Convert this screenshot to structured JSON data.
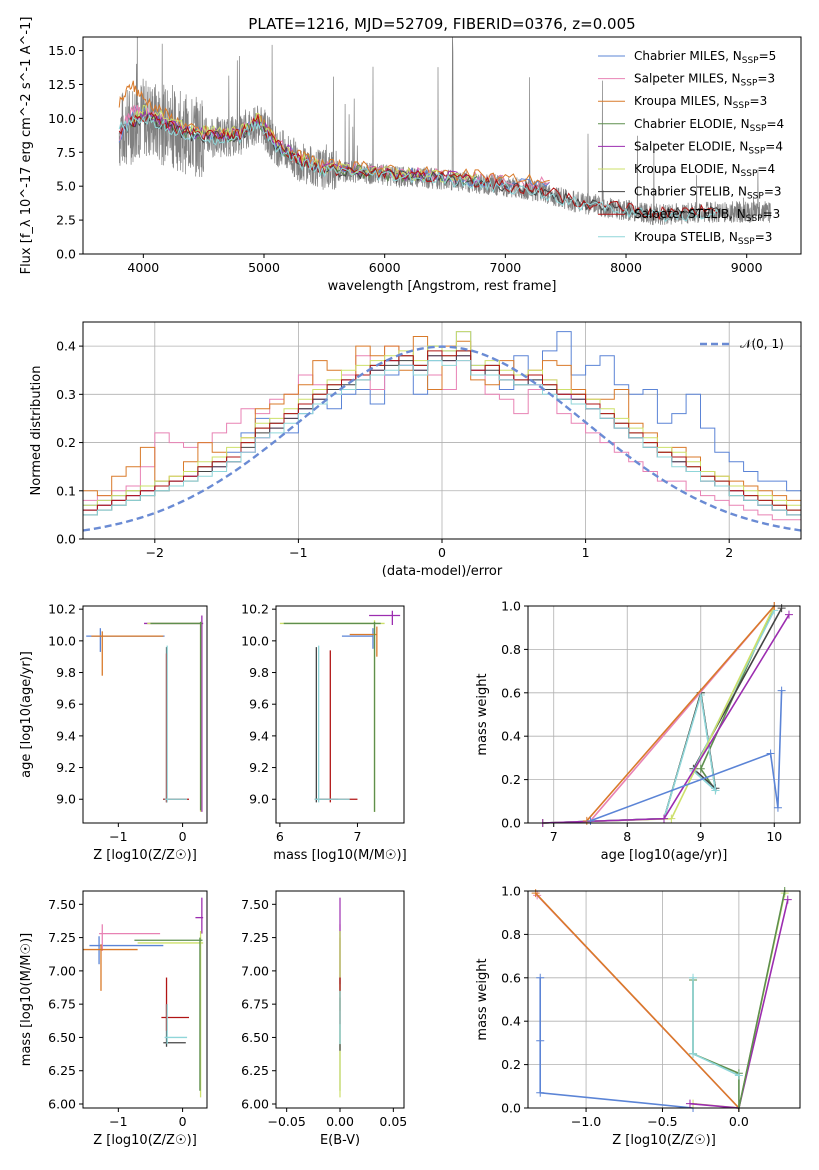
{
  "figure_title": "PLATE=1216, MJD=52709, FIBERID=0376, z=0.005",
  "colors": {
    "chabrier_miles": "#5b84d6",
    "salpeter_miles": "#e882b4",
    "kroupa_miles": "#d97a2a",
    "chabrier_elodie": "#5e8f4e",
    "salpeter_elodie": "#9c2db0",
    "kroupa_elodie": "#cde06a",
    "chabrier_stelib": "#444444",
    "salpeter_stelib": "#b11414",
    "kroupa_stelib": "#8fd6d9",
    "data": "#808080",
    "normal": "#6a8bd4"
  },
  "chart_data": [
    {
      "id": "spectrum",
      "type": "line",
      "title": "PLATE=1216, MJD=52709, FIBERID=0376, z=0.005",
      "xlabel": "wavelength [Angstrom, rest frame]",
      "ylabel": "Flux [f_λ 10^-17 erg cm^-2 s^-1 A^-1]",
      "xlim": [
        3500,
        9450
      ],
      "ylim": [
        0,
        16
      ],
      "xticks": [
        "4000",
        "5000",
        "6000",
        "7000",
        "8000",
        "9000"
      ],
      "yticks": [
        "0.0",
        "2.5",
        "5.0",
        "7.5",
        "10.0",
        "12.5",
        "15.0"
      ],
      "legend_position": "top-right",
      "series": [
        {
          "name": "Chabrier MILES, N_SSP=5",
          "x": [
            3800,
            3900,
            4000,
            4200,
            4400,
            4600,
            4800,
            4950,
            5100,
            5300,
            5500,
            5800,
            6100,
            6400,
            6700,
            7000,
            7400
          ],
          "y": [
            8.5,
            10.5,
            10.4,
            9.6,
            8.9,
            8.8,
            8.9,
            9.9,
            8.2,
            7.0,
            6.4,
            6.2,
            5.9,
            5.8,
            5.5,
            5.3,
            5.1
          ]
        },
        {
          "name": "Salpeter MILES, N_SSP=3",
          "x": [
            3800,
            3900,
            4000,
            4200,
            4400,
            4600,
            4800,
            4950,
            5100,
            5300,
            5500,
            5800,
            6100,
            6400,
            6700,
            7000,
            7400
          ],
          "y": [
            8.6,
            10.7,
            10.5,
            9.7,
            9.0,
            8.9,
            9.0,
            10.0,
            8.3,
            7.1,
            6.5,
            6.3,
            6.0,
            5.9,
            5.6,
            5.4,
            5.2
          ]
        },
        {
          "name": "Kroupa MILES, N_SSP=3",
          "x": [
            3800,
            3900,
            4000,
            4200,
            4400,
            4600,
            4800,
            4950,
            5100,
            5300,
            5500,
            5800,
            6100,
            6400,
            6700,
            7000,
            7400
          ],
          "y": [
            11.0,
            12.5,
            11.5,
            10.2,
            9.2,
            8.9,
            9.0,
            10.0,
            8.4,
            7.2,
            6.6,
            6.4,
            6.1,
            6.0,
            5.8,
            5.6,
            5.4
          ]
        },
        {
          "name": "Chabrier ELODIE, N_SSP=4",
          "x": [
            3900,
            4000,
            4200,
            4400,
            4600,
            4800,
            4950,
            5100,
            5300,
            5500,
            5800,
            6100,
            6400,
            6800
          ],
          "y": [
            9.5,
            10.2,
            9.5,
            8.8,
            8.7,
            8.8,
            9.8,
            8.1,
            6.9,
            6.3,
            6.1,
            5.8,
            5.7,
            5.4
          ]
        },
        {
          "name": "Salpeter ELODIE, N_SSP=4",
          "x": [
            3900,
            4000,
            4200,
            4400,
            4600,
            4800,
            4950,
            5100,
            5300,
            5500,
            5800,
            6100,
            6400,
            6800
          ],
          "y": [
            9.6,
            10.3,
            9.6,
            8.9,
            8.8,
            8.9,
            9.9,
            8.2,
            7.0,
            6.4,
            6.2,
            5.9,
            5.8,
            5.5
          ]
        },
        {
          "name": "Kroupa ELODIE, N_SSP=4",
          "x": [
            3900,
            4000,
            4200,
            4400,
            4600,
            4800,
            4950,
            5100,
            5300,
            5500,
            5800,
            6100,
            6400,
            6800
          ],
          "y": [
            9.8,
            10.6,
            10.0,
            9.2,
            9.0,
            9.0,
            10.1,
            8.3,
            7.0,
            6.4,
            6.2,
            5.9,
            5.8,
            5.5
          ]
        },
        {
          "name": "Chabrier STELIB, N_SSP=3",
          "x": [
            3800,
            4000,
            4200,
            4400,
            4600,
            4800,
            4950,
            5100,
            5300,
            5500,
            5800,
            6100,
            6400,
            6700,
            7000,
            7300,
            7600,
            7900,
            8200,
            8500,
            8800
          ],
          "y": [
            9.0,
            10.1,
            9.4,
            8.7,
            8.6,
            8.7,
            9.7,
            8.0,
            6.8,
            6.2,
            6.0,
            5.7,
            5.6,
            5.3,
            5.0,
            4.6,
            3.8,
            3.4,
            2.9,
            3.0,
            3.1
          ]
        },
        {
          "name": "Salpeter STELIB, N_SSP=3",
          "x": [
            3800,
            4000,
            4200,
            4400,
            4600,
            4800,
            4950,
            5100,
            5300,
            5500,
            5800,
            6100,
            6400,
            6700,
            7000,
            7300,
            7600,
            7900,
            8200,
            8500,
            8800
          ],
          "y": [
            9.1,
            10.2,
            9.5,
            8.8,
            8.7,
            8.8,
            9.8,
            8.1,
            6.9,
            6.3,
            6.1,
            5.8,
            5.7,
            5.4,
            5.1,
            4.7,
            3.9,
            3.5,
            3.0,
            3.1,
            3.2
          ]
        },
        {
          "name": "Kroupa STELIB, N_SSP=3",
          "x": [
            3800,
            4000,
            4200,
            4400,
            4600,
            4800,
            4950,
            5100,
            5300,
            5500,
            5800,
            6100,
            6400,
            6700,
            7000,
            7300,
            7600,
            7900,
            8200,
            8500,
            8800
          ],
          "y": [
            9.2,
            10.0,
            9.3,
            8.6,
            8.5,
            8.6,
            9.6,
            7.9,
            6.7,
            6.1,
            5.9,
            5.6,
            5.5,
            5.2,
            4.9,
            4.5,
            3.7,
            3.3,
            2.8,
            2.9,
            3.0
          ]
        }
      ]
    },
    {
      "id": "residual_hist",
      "type": "line",
      "xlabel": "(data-model)/error",
      "ylabel": "Normed distribution",
      "xlim": [
        -2.5,
        2.5
      ],
      "ylim": [
        0,
        0.45
      ],
      "xticks": [
        "−2",
        "−1",
        "0",
        "1",
        "2"
      ],
      "yticks": [
        "0.0",
        "0.1",
        "0.2",
        "0.3",
        "0.4"
      ],
      "legend_position": "top-right",
      "legend": [
        "𝒩(0, 1)"
      ],
      "grid": true,
      "bin_edges_start": -2.5,
      "bin_width": 0.1,
      "series": [
        {
          "name": "Chabrier MILES, N_SSP=5",
          "values": [
            0.07,
            0.08,
            0.09,
            0.09,
            0.11,
            0.12,
            0.12,
            0.13,
            0.15,
            0.16,
            0.18,
            0.22,
            0.25,
            0.24,
            0.22,
            0.26,
            0.28,
            0.27,
            0.3,
            0.31,
            0.28,
            0.34,
            0.36,
            0.3,
            0.37,
            0.39,
            0.43,
            0.36,
            0.34,
            0.31,
            0.38,
            0.33,
            0.39,
            0.43,
            0.34,
            0.36,
            0.38,
            0.32,
            0.3,
            0.31,
            0.24,
            0.26,
            0.3,
            0.23,
            0.18,
            0.16,
            0.14,
            0.12,
            0.12,
            0.1
          ]
        },
        {
          "name": "Salpeter MILES, N_SSP=3",
          "values": [
            0.08,
            0.09,
            0.1,
            0.11,
            0.15,
            0.22,
            0.2,
            0.19,
            0.2,
            0.22,
            0.24,
            0.27,
            0.26,
            0.29,
            0.3,
            0.34,
            0.32,
            0.3,
            0.34,
            0.38,
            0.31,
            0.4,
            0.38,
            0.36,
            0.34,
            0.31,
            0.37,
            0.34,
            0.3,
            0.29,
            0.26,
            0.31,
            0.33,
            0.26,
            0.24,
            0.22,
            0.2,
            0.18,
            0.16,
            0.14,
            0.12,
            0.12,
            0.1,
            0.09,
            0.08,
            0.07,
            0.06,
            0.05,
            0.04,
            0.04
          ]
        },
        {
          "name": "Kroupa MILES, N_SSP=3",
          "values": [
            0.1,
            0.09,
            0.13,
            0.15,
            0.19,
            0.12,
            0.13,
            0.16,
            0.2,
            0.18,
            0.17,
            0.21,
            0.27,
            0.28,
            0.3,
            0.32,
            0.37,
            0.35,
            0.31,
            0.4,
            0.38,
            0.4,
            0.35,
            0.42,
            0.31,
            0.4,
            0.41,
            0.33,
            0.32,
            0.37,
            0.34,
            0.35,
            0.37,
            0.36,
            0.31,
            0.29,
            0.29,
            0.31,
            0.24,
            0.22,
            0.18,
            0.19,
            0.17,
            0.14,
            0.13,
            0.12,
            0.11,
            0.1,
            0.09,
            0.08
          ]
        },
        {
          "name": "Chabrier ELODIE, N_SSP=4",
          "values": [
            0.06,
            0.07,
            0.08,
            0.1,
            0.1,
            0.11,
            0.12,
            0.14,
            0.15,
            0.16,
            0.17,
            0.2,
            0.23,
            0.24,
            0.26,
            0.27,
            0.3,
            0.32,
            0.33,
            0.34,
            0.36,
            0.37,
            0.38,
            0.36,
            0.4,
            0.38,
            0.39,
            0.35,
            0.36,
            0.34,
            0.33,
            0.34,
            0.32,
            0.3,
            0.3,
            0.28,
            0.26,
            0.24,
            0.22,
            0.2,
            0.18,
            0.17,
            0.15,
            0.13,
            0.12,
            0.1,
            0.09,
            0.08,
            0.07,
            0.06
          ]
        },
        {
          "name": "Salpeter ELODIE, N_SSP=4",
          "values": [
            0.06,
            0.07,
            0.08,
            0.09,
            0.1,
            0.11,
            0.12,
            0.13,
            0.14,
            0.15,
            0.16,
            0.18,
            0.21,
            0.23,
            0.25,
            0.27,
            0.29,
            0.31,
            0.33,
            0.34,
            0.35,
            0.37,
            0.36,
            0.35,
            0.38,
            0.37,
            0.38,
            0.35,
            0.34,
            0.33,
            0.34,
            0.32,
            0.31,
            0.3,
            0.29,
            0.27,
            0.25,
            0.23,
            0.21,
            0.19,
            0.17,
            0.16,
            0.14,
            0.12,
            0.11,
            0.1,
            0.08,
            0.07,
            0.06,
            0.05
          ]
        },
        {
          "name": "Kroupa ELODIE, N_SSP=4",
          "values": [
            0.07,
            0.08,
            0.09,
            0.1,
            0.11,
            0.12,
            0.13,
            0.14,
            0.16,
            0.17,
            0.19,
            0.21,
            0.24,
            0.25,
            0.27,
            0.29,
            0.31,
            0.33,
            0.35,
            0.36,
            0.37,
            0.38,
            0.39,
            0.37,
            0.4,
            0.39,
            0.43,
            0.36,
            0.37,
            0.35,
            0.34,
            0.35,
            0.33,
            0.31,
            0.3,
            0.29,
            0.27,
            0.25,
            0.23,
            0.21,
            0.19,
            0.18,
            0.16,
            0.14,
            0.13,
            0.11,
            0.1,
            0.09,
            0.08,
            0.07
          ]
        },
        {
          "name": "Chabrier STELIB, N_SSP=3",
          "values": [
            0.05,
            0.06,
            0.07,
            0.08,
            0.09,
            0.1,
            0.11,
            0.12,
            0.14,
            0.15,
            0.16,
            0.19,
            0.22,
            0.23,
            0.25,
            0.27,
            0.29,
            0.31,
            0.32,
            0.33,
            0.35,
            0.36,
            0.37,
            0.35,
            0.38,
            0.37,
            0.38,
            0.34,
            0.35,
            0.33,
            0.32,
            0.33,
            0.31,
            0.29,
            0.29,
            0.27,
            0.25,
            0.23,
            0.21,
            0.19,
            0.17,
            0.16,
            0.14,
            0.12,
            0.11,
            0.09,
            0.08,
            0.07,
            0.06,
            0.05
          ]
        },
        {
          "name": "Salpeter STELIB, N_SSP=3",
          "values": [
            0.06,
            0.07,
            0.08,
            0.09,
            0.1,
            0.11,
            0.12,
            0.13,
            0.15,
            0.16,
            0.17,
            0.2,
            0.23,
            0.24,
            0.26,
            0.28,
            0.3,
            0.32,
            0.33,
            0.34,
            0.36,
            0.37,
            0.38,
            0.36,
            0.39,
            0.38,
            0.39,
            0.35,
            0.36,
            0.34,
            0.33,
            0.34,
            0.32,
            0.3,
            0.3,
            0.28,
            0.26,
            0.24,
            0.22,
            0.2,
            0.18,
            0.17,
            0.15,
            0.13,
            0.12,
            0.1,
            0.09,
            0.08,
            0.07,
            0.06
          ]
        },
        {
          "name": "Kroupa STELIB, N_SSP=3",
          "values": [
            0.05,
            0.06,
            0.07,
            0.08,
            0.09,
            0.1,
            0.11,
            0.12,
            0.13,
            0.14,
            0.16,
            0.18,
            0.21,
            0.22,
            0.24,
            0.26,
            0.28,
            0.3,
            0.31,
            0.33,
            0.34,
            0.35,
            0.36,
            0.34,
            0.37,
            0.36,
            0.37,
            0.34,
            0.34,
            0.33,
            0.32,
            0.32,
            0.3,
            0.29,
            0.28,
            0.27,
            0.25,
            0.23,
            0.21,
            0.19,
            0.17,
            0.15,
            0.14,
            0.12,
            0.11,
            0.09,
            0.08,
            0.07,
            0.06,
            0.05
          ]
        }
      ]
    },
    {
      "id": "age_vs_Z",
      "type": "scatter",
      "xlabel": "Z [log10(Z/Z☉)]",
      "ylabel": "age [log10(age/yr)]",
      "xlim": [
        -1.55,
        0.38
      ],
      "ylim": [
        8.85,
        10.22
      ],
      "xticks": [
        "−1",
        "0"
      ],
      "yticks": [
        "9.0",
        "9.2",
        "9.4",
        "9.6",
        "9.8",
        "10.0",
        "10.2"
      ]
    },
    {
      "id": "age_vs_mass",
      "type": "scatter",
      "xlabel": "mass [log10(M/M☉)]",
      "xlim": [
        5.95,
        7.6
      ],
      "ylim": [
        8.85,
        10.22
      ],
      "xticks": [
        "6",
        "7"
      ],
      "yticks": [
        "9.0",
        "9.2",
        "9.4",
        "9.6",
        "9.8",
        "10.0",
        "10.2"
      ]
    },
    {
      "id": "mass_weight_vs_age",
      "type": "line",
      "xlabel": "age [log10(age/yr)]",
      "ylabel": "mass weight",
      "xlim": [
        6.65,
        10.35
      ],
      "ylim": [
        0,
        1
      ],
      "xticks": [
        "7",
        "8",
        "9",
        "10"
      ],
      "yticks": [
        "0.0",
        "0.2",
        "0.4",
        "0.6",
        "0.8",
        "1.0"
      ],
      "grid": true
    },
    {
      "id": "mass_vs_Z",
      "type": "scatter",
      "xlabel": "Z [log10(Z/Z☉)]",
      "ylabel": "mass [log10(M/M☉)]",
      "xlim": [
        -1.55,
        0.38
      ],
      "ylim": [
        5.97,
        7.6
      ],
      "xticks": [
        "−1",
        "0"
      ],
      "yticks": [
        "6.00",
        "6.25",
        "6.50",
        "6.75",
        "7.00",
        "7.25",
        "7.50"
      ]
    },
    {
      "id": "mass_vs_ebv",
      "type": "scatter",
      "xlabel": "E(B-V)",
      "xlim": [
        -0.06,
        0.06
      ],
      "ylim": [
        5.97,
        7.6
      ],
      "xticks": [
        "−0.05",
        "0.00",
        "0.05"
      ],
      "yticks": [
        "6.00",
        "6.25",
        "6.50",
        "6.75",
        "7.00",
        "7.25",
        "7.50"
      ]
    },
    {
      "id": "mass_weight_vs_Z",
      "type": "line",
      "xlabel": "Z [log10(Z/Z☉)]",
      "ylabel": "mass weight",
      "xlim": [
        -1.38,
        0.4
      ],
      "ylim": [
        0,
        1
      ],
      "xticks": [
        "−1.0",
        "−0.5",
        "0.0"
      ],
      "yticks": [
        "0.0",
        "0.2",
        "0.4",
        "0.6",
        "0.8",
        "1.0"
      ],
      "grid": true
    }
  ]
}
